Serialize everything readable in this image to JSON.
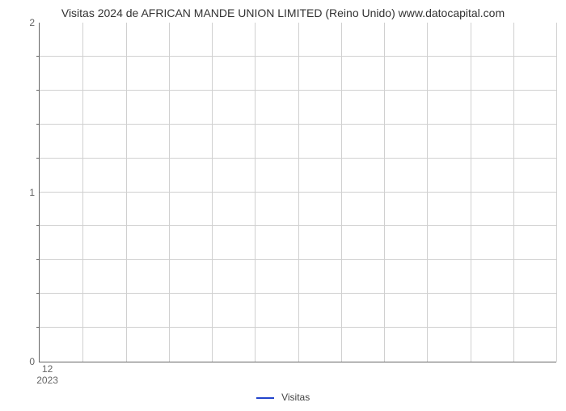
{
  "chart": {
    "type": "line",
    "title": "Visitas 2024 de AFRICAN MANDE UNION LIMITED (Reino Unido) www.datocapital.com",
    "title_fontsize": 14,
    "background_color": "#ffffff",
    "grid_color": "#d0d0d0",
    "axis_color": "#666666",
    "y": {
      "min": 0,
      "max": 2,
      "major_ticks": [
        0,
        1,
        2
      ],
      "minor_rows": 10,
      "label_fontsize": 12
    },
    "x": {
      "columns": 12,
      "tick_label_top": "12",
      "tick_label_bottom": "2023",
      "label_fontsize": 12
    },
    "legend": {
      "label": "Visitas",
      "color": "#2244cc"
    },
    "series": []
  }
}
